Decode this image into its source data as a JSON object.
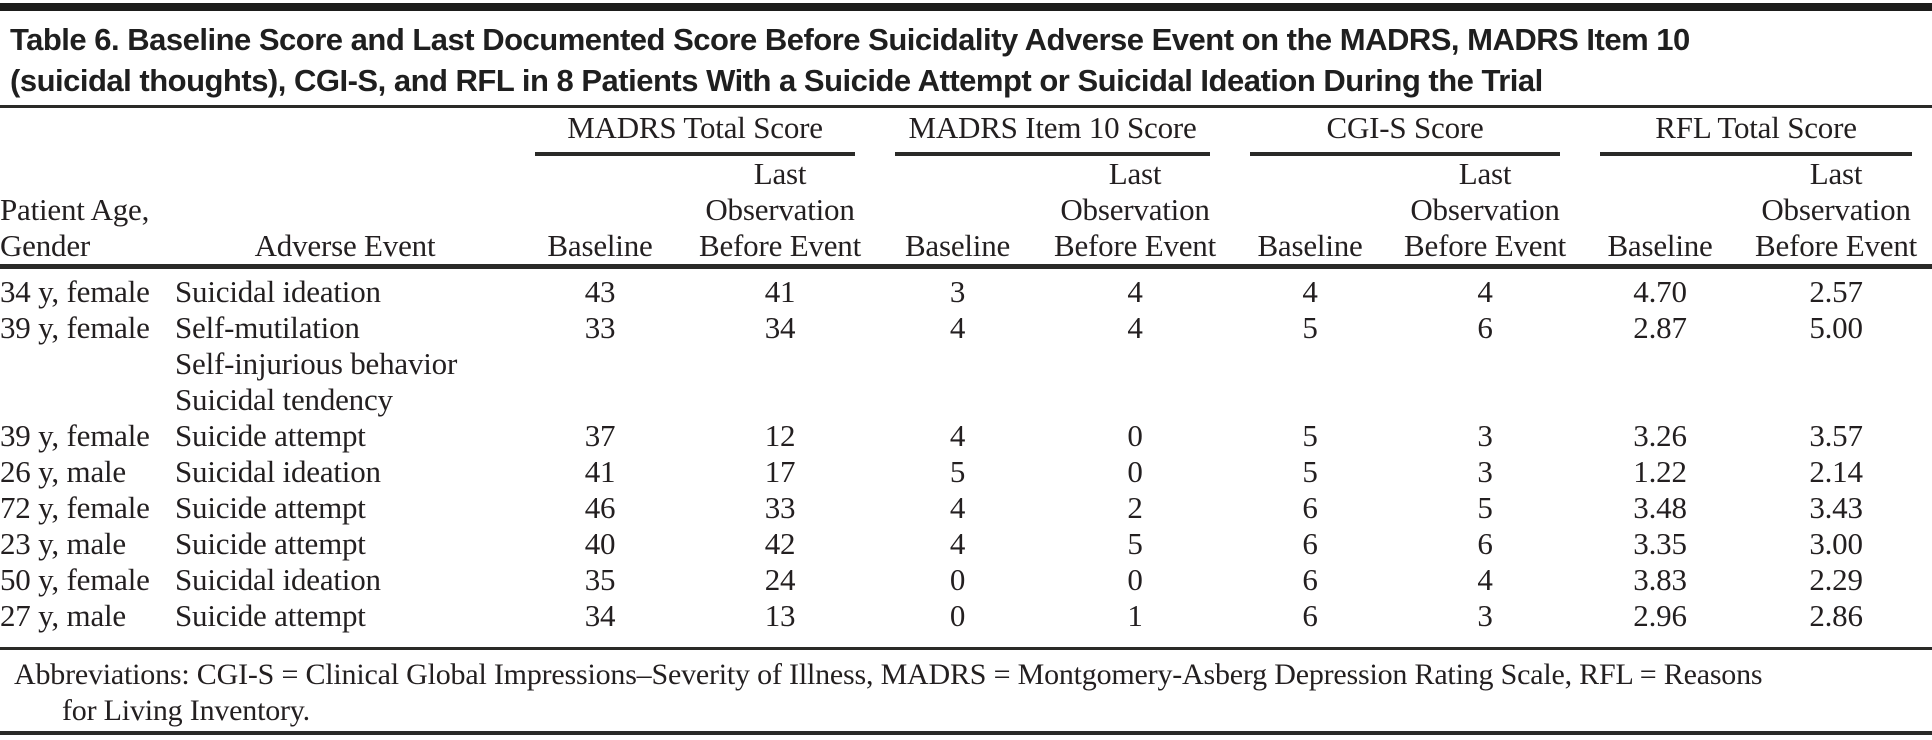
{
  "palette": {
    "ink": "#231f20",
    "rule": "#2a2a28",
    "background": "#ffffff"
  },
  "title": {
    "lines": [
      "Table 6. Baseline Score and Last Documented Score Before Suicidality Adverse Event on the MADRS, MADRS Item 10",
      "(suicidal thoughts), CGI-S, and RFL in 8 Patients With a Suicide Attempt or Suicidal Ideation During the Trial"
    ]
  },
  "table": {
    "row_header_columns": {
      "patient": [
        "Patient Age,",
        "Gender"
      ],
      "adverse_event": "Adverse Event"
    },
    "score_groups": [
      {
        "label": "MADRS Total Score"
      },
      {
        "label": "MADRS Item 10 Score"
      },
      {
        "label": "CGI-S Score"
      },
      {
        "label": "RFL Total Score"
      }
    ],
    "sub_columns": {
      "baseline": "Baseline",
      "last_observation": [
        "Last",
        "Observation",
        "Before Event"
      ]
    },
    "rows": [
      {
        "patient": "34 y, female",
        "adverse_event": [
          "Suicidal ideation"
        ],
        "madrs_total": {
          "baseline": "43",
          "last_observation": "41"
        },
        "madrs_item10": {
          "baseline": "3",
          "last_observation": "4"
        },
        "cgi_s": {
          "baseline": "4",
          "last_observation": "4"
        },
        "rfl": {
          "baseline": "4.70",
          "last_observation": "2.57"
        }
      },
      {
        "patient": "39 y, female",
        "adverse_event": [
          "Self-mutilation",
          "Self-injurious behavior",
          "Suicidal tendency"
        ],
        "madrs_total": {
          "baseline": "33",
          "last_observation": "34"
        },
        "madrs_item10": {
          "baseline": "4",
          "last_observation": "4"
        },
        "cgi_s": {
          "baseline": "5",
          "last_observation": "6"
        },
        "rfl": {
          "baseline": "2.87",
          "last_observation": "5.00"
        }
      },
      {
        "patient": "39 y, female",
        "adverse_event": [
          "Suicide attempt"
        ],
        "madrs_total": {
          "baseline": "37",
          "last_observation": "12"
        },
        "madrs_item10": {
          "baseline": "4",
          "last_observation": "0"
        },
        "cgi_s": {
          "baseline": "5",
          "last_observation": "3"
        },
        "rfl": {
          "baseline": "3.26",
          "last_observation": "3.57"
        }
      },
      {
        "patient": "26 y, male",
        "adverse_event": [
          "Suicidal ideation"
        ],
        "madrs_total": {
          "baseline": "41",
          "last_observation": "17"
        },
        "madrs_item10": {
          "baseline": "5",
          "last_observation": "0"
        },
        "cgi_s": {
          "baseline": "5",
          "last_observation": "3"
        },
        "rfl": {
          "baseline": "1.22",
          "last_observation": "2.14"
        }
      },
      {
        "patient": "72 y, female",
        "adverse_event": [
          "Suicide attempt"
        ],
        "madrs_total": {
          "baseline": "46",
          "last_observation": "33"
        },
        "madrs_item10": {
          "baseline": "4",
          "last_observation": "2"
        },
        "cgi_s": {
          "baseline": "6",
          "last_observation": "5"
        },
        "rfl": {
          "baseline": "3.48",
          "last_observation": "3.43"
        }
      },
      {
        "patient": "23 y, male",
        "adverse_event": [
          "Suicide attempt"
        ],
        "madrs_total": {
          "baseline": "40",
          "last_observation": "42"
        },
        "madrs_item10": {
          "baseline": "4",
          "last_observation": "5"
        },
        "cgi_s": {
          "baseline": "6",
          "last_observation": "6"
        },
        "rfl": {
          "baseline": "3.35",
          "last_observation": "3.00"
        }
      },
      {
        "patient": "50 y, female",
        "adverse_event": [
          "Suicidal ideation"
        ],
        "madrs_total": {
          "baseline": "35",
          "last_observation": "24"
        },
        "madrs_item10": {
          "baseline": "0",
          "last_observation": "0"
        },
        "cgi_s": {
          "baseline": "6",
          "last_observation": "4"
        },
        "rfl": {
          "baseline": "3.83",
          "last_observation": "2.29"
        }
      },
      {
        "patient": "27 y, male",
        "adverse_event": [
          "Suicide attempt"
        ],
        "madrs_total": {
          "baseline": "34",
          "last_observation": "13"
        },
        "madrs_item10": {
          "baseline": "0",
          "last_observation": "1"
        },
        "cgi_s": {
          "baseline": "6",
          "last_observation": "3"
        },
        "rfl": {
          "baseline": "2.96",
          "last_observation": "2.86"
        }
      }
    ]
  },
  "footnote": {
    "lines": [
      "Abbreviations: CGI-S = Clinical Global Impressions–Severity of Illness, MADRS = Montgomery-Asberg Depression Rating Scale, RFL = Reasons",
      "for Living Inventory."
    ]
  }
}
